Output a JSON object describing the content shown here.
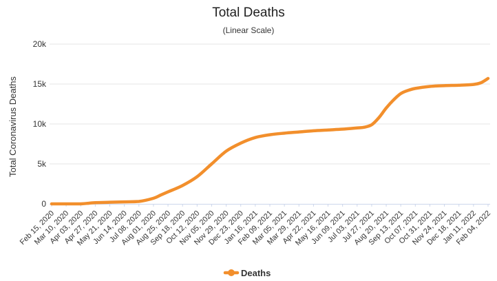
{
  "chart_data": {
    "type": "line",
    "title": "Total Deaths",
    "subtitle": "(Linear Scale)",
    "xlabel": "",
    "ylabel": "Total Coronavirus Deaths",
    "ylim": [
      0,
      20000
    ],
    "yticks": [
      0,
      5000,
      10000,
      15000,
      20000
    ],
    "ytick_labels": [
      "0",
      "5k",
      "10k",
      "15k",
      "20k"
    ],
    "x_tick_labels": [
      "Feb 15, 2020",
      "Mar 10, 2020",
      "Apr 03, 2020",
      "Apr 27, 2020",
      "May 21, 2020",
      "Jun 14, 2020",
      "Jul 08, 2020",
      "Aug 01, 2020",
      "Aug 25, 2020",
      "Sep 18, 2020",
      "Oct 12, 2020",
      "Nov 05, 2020",
      "Nov 29, 2020",
      "Dec 23, 2020",
      "Jan 16, 2021",
      "Feb 09, 2021",
      "Mar 05, 2021",
      "Mar 29, 2021",
      "Apr 22, 2021",
      "May 16, 2021",
      "Jun 09, 2021",
      "Jul 03, 2021",
      "Jul 27, 2021",
      "Aug 20, 2021",
      "Sep 13, 2021",
      "Oct 07, 2021",
      "Oct 31, 2021",
      "Nov 24, 2021",
      "Dec 18, 2021",
      "Jan 11, 2022",
      "Feb 04, 2022"
    ],
    "grid": true,
    "legend": "bottom-center",
    "series": [
      {
        "name": "Deaths",
        "color": "#f28f2c",
        "x_index": [
          0,
          1,
          2,
          3,
          4,
          5,
          6,
          7,
          7.5,
          8,
          9,
          10,
          11,
          12,
          13,
          14,
          15,
          16,
          17,
          18,
          19,
          20,
          21,
          21.5,
          22,
          22.5,
          23,
          23.5,
          24,
          24.5,
          25,
          26,
          27,
          28,
          29,
          29.5,
          30
        ],
        "values": [
          0,
          0,
          0,
          150,
          200,
          250,
          300,
          700,
          1100,
          1500,
          2300,
          3400,
          5000,
          6600,
          7600,
          8300,
          8650,
          8850,
          9000,
          9150,
          9250,
          9350,
          9500,
          9600,
          9900,
          10800,
          12000,
          13000,
          13800,
          14200,
          14450,
          14700,
          14800,
          14850,
          14950,
          15150,
          15700
        ]
      }
    ]
  }
}
